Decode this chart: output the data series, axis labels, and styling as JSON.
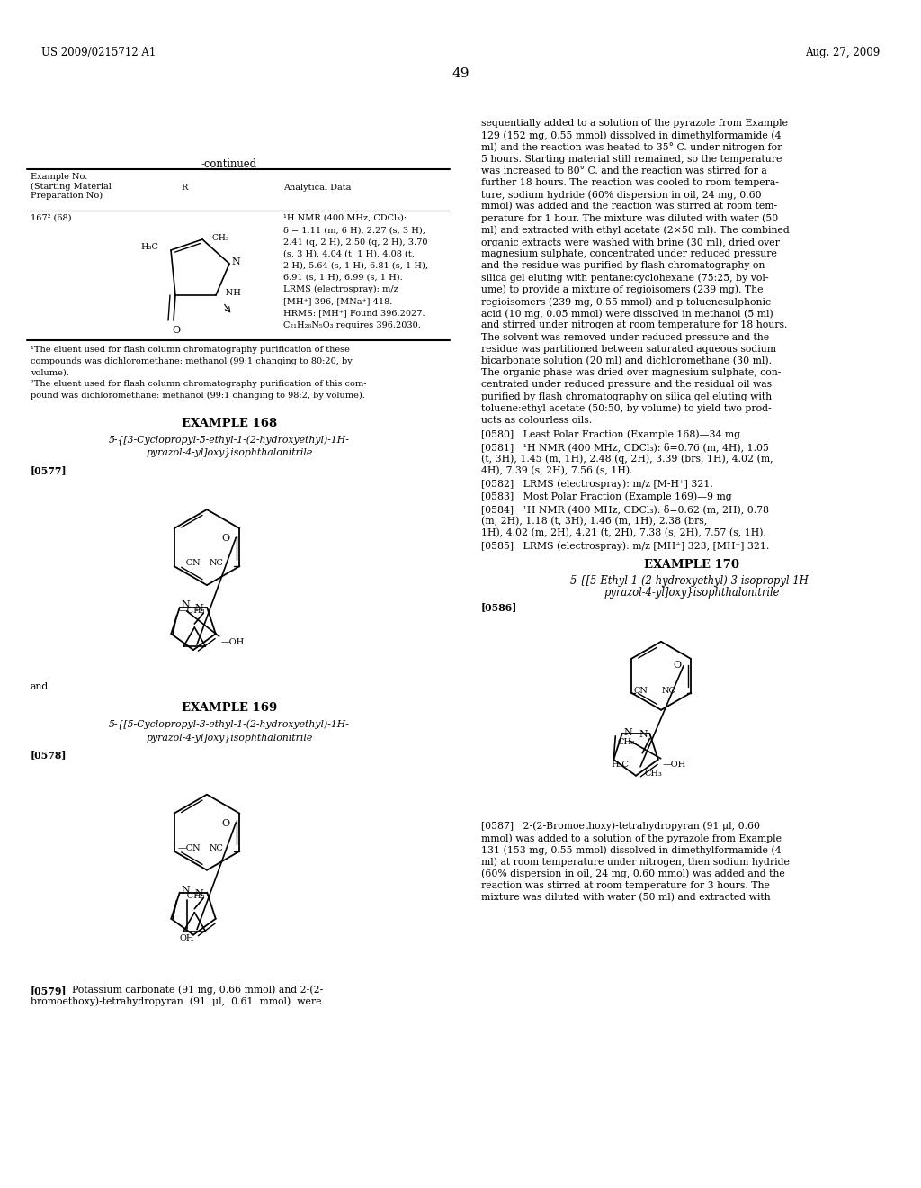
{
  "bg_color": "#ffffff",
  "header_left": "US 2009/0215712 A1",
  "header_right": "Aug. 27, 2009",
  "page_number": "49",
  "right_col_text": "sequentially added to a solution of the pyrazole from Example\n129 (152 mg, 0.55 mmol) dissolved in dimethylformamide (4\nml) and the reaction was heated to 35° C. under nitrogen for\n5 hours. Starting material still remained, so the temperature\nwas increased to 80° C. and the reaction was stirred for a\nfurther 18 hours. The reaction was cooled to room tempera-\nture, sodium hydride (60% dispersion in oil, 24 mg, 0.60\nmmol) was added and the reaction was stirred at room tem-\nperature for 1 hour. The mixture was diluted with water (50\nml) and extracted with ethyl acetate (2×50 ml). The combined\norganic extracts were washed with brine (30 ml), dried over\nmagnesium sulphate, concentrated under reduced pressure\nand the residue was purified by flash chromatography on\nsilica gel eluting with pentane:cyclohexane (75:25, by vol-\nume) to provide a mixture of regioisomers (239 mg). The\nregioisomers (239 mg, 0.55 mmol) and p-toluenesulphonic\nacid (10 mg, 0.05 mmol) were dissolved in methanol (5 ml)\nand stirred under nitrogen at room temperature for 18 hours.\nThe solvent was removed under reduced pressure and the\nresidue was partitioned between saturated aqueous sodium\nbicarbonate solution (20 ml) and dichloromethane (30 ml).\nThe organic phase was dried over magnesium sulphate, con-\ncentrated under reduced pressure and the residual oil was\npurified by flash chromatography on silica gel eluting with\ntoluene:ethyl acetate (50:50, by volume) to yield two prod-\nucts as colourless oils.",
  "ref580_text": "[0580]   Least Polar Fraction (Example 168)—34 mg",
  "ref581_text": "[0581]   ¹H NMR (400 MHz, CDCl₃): δ=0.76 (m, 4H), 1.05\n(t, 3H), 1.45 (m, 1H), 2.48 (q, 2H), 3.39 (brs, 1H), 4.02 (m,\n4H), 7.39 (s, 2H), 7.56 (s, 1H).",
  "ref582_text": "[0582]   LRMS (electrospray): m/z [M-H⁺] 321.",
  "ref583_text": "[0583]   Most Polar Fraction (Example 169)—9 mg",
  "ref584_text": "[0584]   ¹H NMR (400 MHz, CDCl₃): δ=0.62 (m, 2H), 0.78\n(m, 2H), 1.18 (t, 3H), 1.46 (m, 1H), 2.38 (brs,\n1H), 4.02 (m, 2H), 4.21 (t, 2H), 7.38 (s, 2H), 7.57 (s, 1H).",
  "ref585_text": "[0585]   LRMS (electrospray): m/z [MH⁺] 323, [MH⁺] 321.",
  "example170_title": "EXAMPLE 170",
  "example170_name": "5-{[5-Ethyl-1-(2-hydroxyethyl)-3-isopropyl-1H-\npyrazol-4-yl]oxy}isophthalonitrile",
  "example170_ref": "[0586]",
  "ref587_text": "[0587]   2-(2-Bromoethoxy)-tetrahydropyran (91 μl, 0.60\nmmol) was added to a solution of the pyrazole from Example\n131 (153 mg, 0.55 mmol) dissolved in dimethylformamide (4\nml) at room temperature under nitrogen, then sodium hydride\n(60% dispersion in oil, 24 mg, 0.60 mmol) was added and the\nreaction was stirred at room temperature for 3 hours. The\nmixture was diluted with water (50 ml) and extracted with"
}
